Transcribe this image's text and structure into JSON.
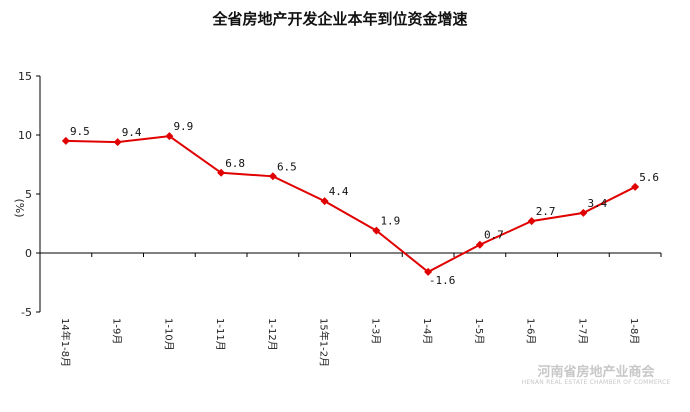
{
  "chart_data": {
    "type": "line",
    "title": "全省房地产开发企业本年到位资金增速",
    "ylabel": "(%)",
    "categories": [
      "14年1-8月",
      "1-9月",
      "1-10月",
      "1-11月",
      "1-12月",
      "15年1-2月",
      "1-3月",
      "1-4月",
      "1-5月",
      "1-6月",
      "1-7月",
      "1-8月"
    ],
    "series": [
      {
        "values": [
          9.5,
          9.4,
          9.9,
          6.8,
          6.5,
          4.4,
          1.9,
          -1.6,
          0.7,
          2.7,
          3.4,
          5.6
        ]
      }
    ],
    "data_labels": [
      "9.5",
      "9.4",
      "9.9",
      "6.8",
      "6.5",
      "4.4",
      "1.9",
      "-1.6",
      "0.7",
      "2.7",
      "3.4",
      "5.6"
    ],
    "ylim": [
      -5,
      15
    ],
    "yticks": [
      15,
      10,
      5,
      0,
      -5
    ],
    "grid": false,
    "line_color": "#e00000",
    "marker": "diamond"
  },
  "watermark": {
    "cn": "河南省房地产业商会",
    "en": "HENAN REAL ESTATE CHAMBER OF COMMERCE"
  }
}
